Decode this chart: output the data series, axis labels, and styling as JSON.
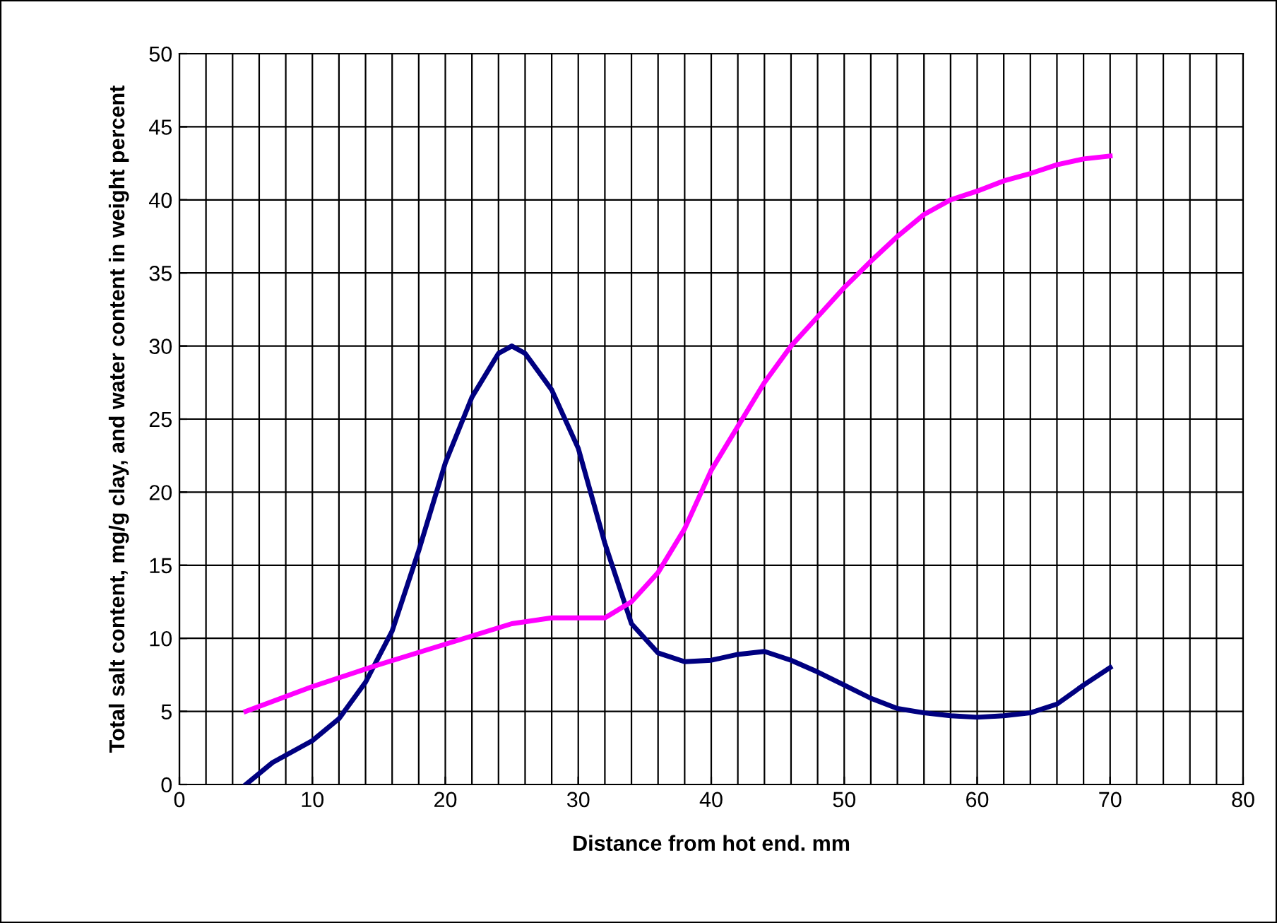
{
  "chart_data": {
    "type": "line",
    "xlabel": "Distance from hot end. mm",
    "ylabel": "Total salt content, mg/g clay, and water content in weight percent",
    "xlim": [
      0,
      80
    ],
    "xticks": [
      0,
      10,
      20,
      30,
      40,
      50,
      60,
      70,
      80
    ],
    "ylim": [
      0,
      50
    ],
    "yticks": [
      0,
      5,
      10,
      15,
      20,
      25,
      30,
      35,
      40,
      45,
      50
    ],
    "grid": true,
    "legend": false,
    "marker": "none",
    "line_style": "solid",
    "series": [
      {
        "color": "#000080",
        "x": [
          5,
          7,
          10,
          12,
          14,
          16,
          18,
          20,
          22,
          24,
          25,
          26,
          28,
          30,
          32,
          34,
          36,
          38,
          40,
          42,
          44,
          46,
          48,
          50,
          52,
          54,
          56,
          58,
          60,
          62,
          64,
          66,
          68,
          70
        ],
        "values": [
          0,
          1.5,
          3,
          4.5,
          7,
          10.5,
          16,
          22,
          26.5,
          29.5,
          30,
          29.5,
          27,
          23,
          16.5,
          11,
          9,
          8.4,
          8.5,
          8.9,
          9.1,
          8.5,
          7.7,
          6.8,
          5.9,
          5.2,
          4.9,
          4.7,
          4.6,
          4.7,
          4.9,
          5.5,
          6.8,
          8
        ]
      },
      {
        "color": "#ff00ff",
        "x": [
          5,
          10,
          15,
          20,
          25,
          28,
          32,
          34,
          36,
          38,
          40,
          42,
          44,
          46,
          48,
          50,
          52,
          54,
          56,
          58,
          60,
          62,
          64,
          66,
          68,
          70
        ],
        "values": [
          5,
          6.7,
          8.2,
          9.6,
          11,
          11.4,
          11.4,
          12.5,
          14.5,
          17.5,
          21.5,
          24.5,
          27.5,
          30,
          32,
          34,
          35.8,
          37.5,
          39,
          40,
          40.6,
          41.3,
          41.8,
          42.4,
          42.8,
          43
        ]
      }
    ]
  }
}
